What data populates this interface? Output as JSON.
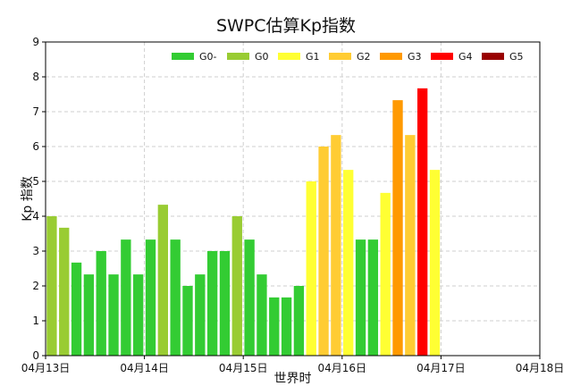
{
  "chart_data": {
    "type": "bar",
    "title": "SWPC估算Kp指数",
    "xlabel": "世界时",
    "ylabel": "Kp 指数",
    "ylim": [
      0,
      9
    ],
    "yticks": [
      "0",
      "1",
      "2",
      "3",
      "4",
      "5",
      "6",
      "7",
      "8",
      "9"
    ],
    "xticks": [
      "04月13日",
      "04月14日",
      "04月15日",
      "04月16日",
      "04月17日",
      "04月18日"
    ],
    "grid": true,
    "legend_position": "top-right",
    "legend": [
      {
        "label": "G0-",
        "color": "#33cc33"
      },
      {
        "label": "G0",
        "color": "#99cc33"
      },
      {
        "label": "G1",
        "color": "#ffff33"
      },
      {
        "label": "G2",
        "color": "#ffcc33"
      },
      {
        "label": "G3",
        "color": "#ff9900"
      },
      {
        "label": "G4",
        "color": "#ff0000"
      },
      {
        "label": "G5",
        "color": "#990000"
      }
    ],
    "bars": [
      {
        "t": "04-13 00:00",
        "value": 4.0,
        "level": "G0"
      },
      {
        "t": "04-13 03:00",
        "value": 3.67,
        "level": "G0"
      },
      {
        "t": "04-13 06:00",
        "value": 2.67,
        "level": "G0-"
      },
      {
        "t": "04-13 09:00",
        "value": 2.33,
        "level": "G0-"
      },
      {
        "t": "04-13 12:00",
        "value": 3.0,
        "level": "G0-"
      },
      {
        "t": "04-13 15:00",
        "value": 2.33,
        "level": "G0-"
      },
      {
        "t": "04-13 18:00",
        "value": 3.33,
        "level": "G0-"
      },
      {
        "t": "04-13 21:00",
        "value": 2.33,
        "level": "G0-"
      },
      {
        "t": "04-14 00:00",
        "value": 3.33,
        "level": "G0-"
      },
      {
        "t": "04-14 03:00",
        "value": 4.33,
        "level": "G0"
      },
      {
        "t": "04-14 06:00",
        "value": 3.33,
        "level": "G0-"
      },
      {
        "t": "04-14 09:00",
        "value": 2.0,
        "level": "G0-"
      },
      {
        "t": "04-14 12:00",
        "value": 2.33,
        "level": "G0-"
      },
      {
        "t": "04-14 15:00",
        "value": 3.0,
        "level": "G0-"
      },
      {
        "t": "04-14 18:00",
        "value": 3.0,
        "level": "G0-"
      },
      {
        "t": "04-14 21:00",
        "value": 4.0,
        "level": "G0"
      },
      {
        "t": "04-15 00:00",
        "value": 3.33,
        "level": "G0-"
      },
      {
        "t": "04-15 03:00",
        "value": 2.33,
        "level": "G0-"
      },
      {
        "t": "04-15 06:00",
        "value": 1.67,
        "level": "G0-"
      },
      {
        "t": "04-15 09:00",
        "value": 1.67,
        "level": "G0-"
      },
      {
        "t": "04-15 12:00",
        "value": 2.0,
        "level": "G0-"
      },
      {
        "t": "04-15 15:00",
        "value": 5.0,
        "level": "G1"
      },
      {
        "t": "04-15 18:00",
        "value": 6.0,
        "level": "G2"
      },
      {
        "t": "04-15 21:00",
        "value": 6.33,
        "level": "G2"
      },
      {
        "t": "04-16 00:00",
        "value": 5.33,
        "level": "G1"
      },
      {
        "t": "04-16 03:00",
        "value": 3.33,
        "level": "G0-"
      },
      {
        "t": "04-16 06:00",
        "value": 3.33,
        "level": "G0-"
      },
      {
        "t": "04-16 09:00",
        "value": 4.67,
        "level": "G1"
      },
      {
        "t": "04-16 12:00",
        "value": 7.33,
        "level": "G3"
      },
      {
        "t": "04-16 15:00",
        "value": 6.33,
        "level": "G2"
      },
      {
        "t": "04-16 18:00",
        "value": 7.67,
        "level": "G4"
      },
      {
        "t": "04-16 21:00",
        "value": 5.33,
        "level": "G1"
      }
    ]
  }
}
